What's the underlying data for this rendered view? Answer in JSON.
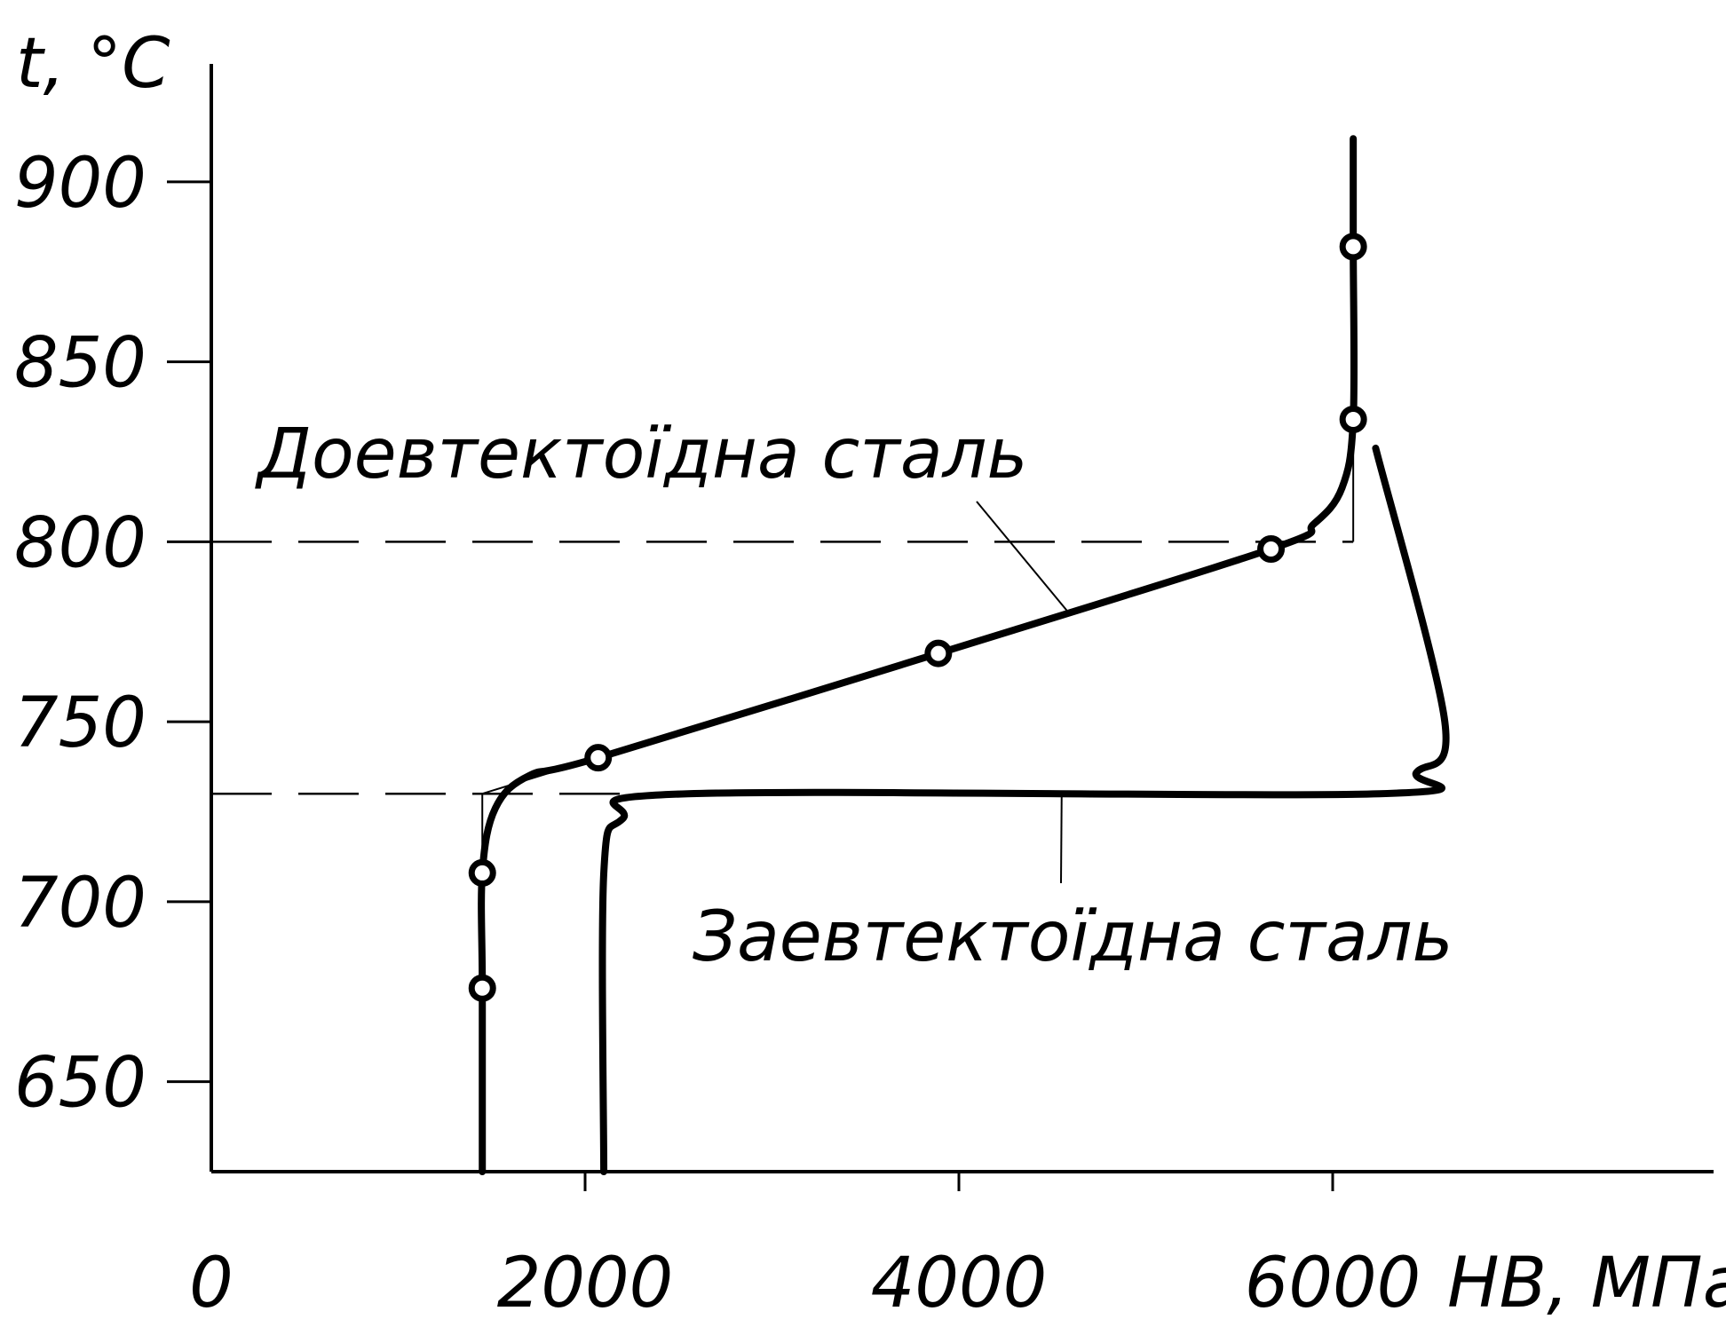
{
  "chart_data": {
    "type": "line",
    "xlabel": "HB, МПа",
    "ylabel": "t, °C",
    "xlim": [
      0,
      8000
    ],
    "ylim": [
      625,
      935
    ],
    "x_ticks": [
      {
        "value": 0,
        "label": "0"
      },
      {
        "value": 2000,
        "label": "2000"
      },
      {
        "value": 4000,
        "label": "4000"
      },
      {
        "value": 6000,
        "label": "6000"
      }
    ],
    "y_ticks": [
      {
        "value": 650,
        "label": "650"
      },
      {
        "value": 700,
        "label": "700"
      },
      {
        "value": 750,
        "label": "750"
      },
      {
        "value": 800,
        "label": "800"
      },
      {
        "value": 850,
        "label": "850"
      },
      {
        "value": 900,
        "label": "900"
      }
    ],
    "grid": false,
    "reference_lines": [
      {
        "axis": "y",
        "value": 730,
        "style": "dashed"
      },
      {
        "axis": "y",
        "value": 800,
        "style": "dashed"
      }
    ],
    "series": [
      {
        "name": "Доевтектоїдна сталь",
        "markers": [
          {
            "x": 1450,
            "y": 676
          },
          {
            "x": 1450,
            "y": 708
          },
          {
            "x": 2070,
            "y": 740
          },
          {
            "x": 3890,
            "y": 769
          },
          {
            "x": 5670,
            "y": 798
          },
          {
            "x": 6110,
            "y": 834
          },
          {
            "x": 6110,
            "y": 882
          }
        ],
        "curve": [
          [
            1450,
            625
          ],
          [
            1450,
            676
          ],
          [
            1450,
            708
          ],
          [
            1520,
            726
          ],
          [
            1700,
            735
          ],
          [
            2070,
            740
          ],
          [
            3890,
            769
          ],
          [
            5670,
            798
          ],
          [
            5900,
            805
          ],
          [
            6050,
            815
          ],
          [
            6110,
            834
          ],
          [
            6110,
            882
          ],
          [
            6110,
            912
          ]
        ]
      },
      {
        "name": "Заевтектоїдна сталь",
        "curve": [
          [
            2100,
            625
          ],
          [
            2100,
            708
          ],
          [
            2200,
            723
          ],
          [
            2550,
            730
          ],
          [
            6250,
            730
          ],
          [
            6450,
            736
          ],
          [
            6600,
            750
          ],
          [
            6230,
            826
          ]
        ]
      }
    ]
  }
}
